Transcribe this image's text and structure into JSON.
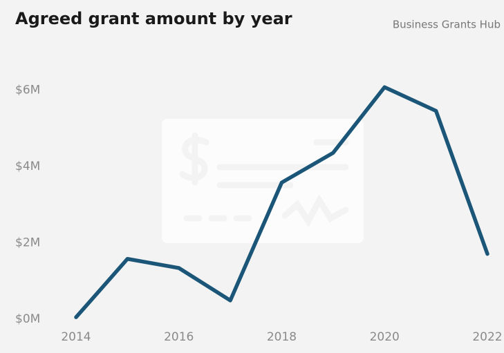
{
  "chart_data": {
    "type": "line",
    "title": "Agreed grant amount by year",
    "subtitle": "Business Grants Hub",
    "x": [
      2014,
      2015,
      2016,
      2017,
      2018,
      2019,
      2020,
      2021,
      2022
    ],
    "series": [
      {
        "name": "Agreed grant amount",
        "color": "#1b5679",
        "values": [
          0.05,
          1.58,
          1.34,
          0.49,
          3.58,
          4.36,
          6.08,
          5.46,
          1.71
        ]
      }
    ],
    "xlim": [
      2014,
      2022
    ],
    "xticks": [
      2014,
      2016,
      2018,
      2020,
      2022
    ],
    "ylim": [
      0,
      6.5
    ],
    "yticks": [
      {
        "value": 0,
        "label": "$0M"
      },
      {
        "value": 2,
        "label": "$2M"
      },
      {
        "value": 4,
        "label": "$4M"
      },
      {
        "value": 6,
        "label": "$6M"
      }
    ],
    "grid": false
  }
}
